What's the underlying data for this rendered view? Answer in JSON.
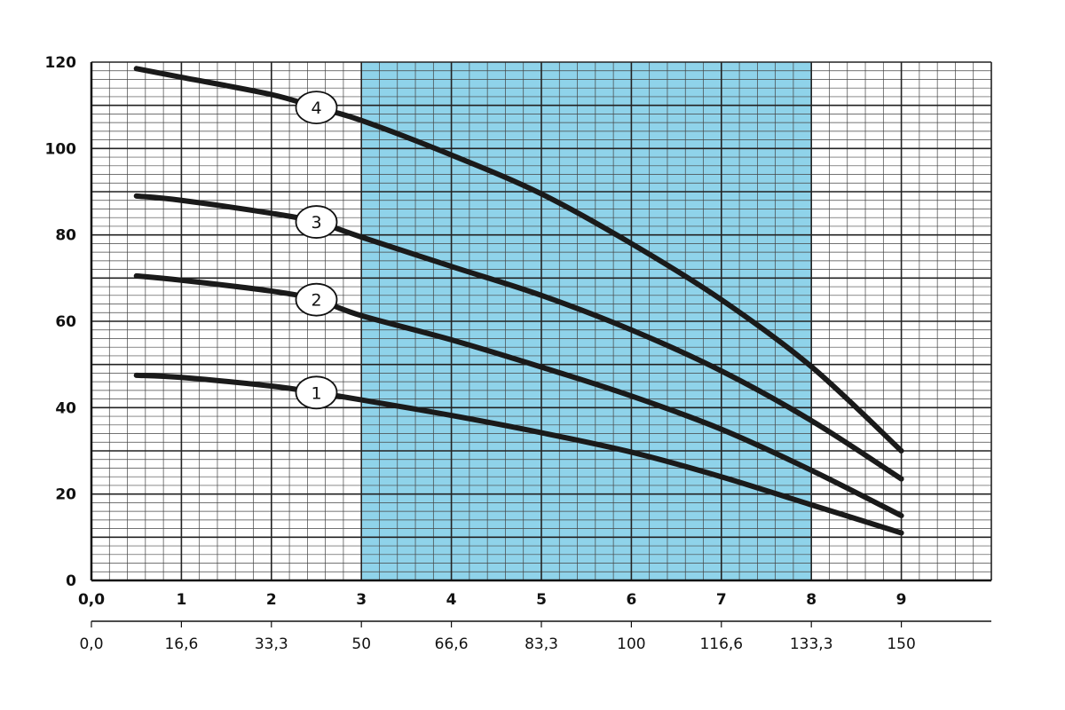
{
  "chart_data": {
    "type": "line",
    "x_ticks": [
      "0,0",
      "1",
      "2",
      "3",
      "4",
      "5",
      "6",
      "7",
      "8",
      "9"
    ],
    "x2_ticks": [
      "0,0",
      "16,6",
      "33,3",
      "50",
      "66,6",
      "83,3",
      "100",
      "116,6",
      "133,3",
      "150"
    ],
    "y_ticks": [
      "0",
      "20",
      "40",
      "60",
      "80",
      "100",
      "120"
    ],
    "xlim": [
      0,
      10
    ],
    "ylim": [
      0,
      120
    ],
    "grid": true,
    "shaded_range": {
      "x": [
        3,
        8
      ],
      "color": "#8fd3ea"
    },
    "series": [
      {
        "name": "1",
        "x": [
          0.5,
          1,
          2,
          2.5,
          3,
          4,
          5,
          6,
          7,
          8,
          9
        ],
        "y": [
          47.5,
          47,
          45,
          43.5,
          41.8,
          38.2,
          34.2,
          29.7,
          24,
          17.5,
          11
        ]
      },
      {
        "name": "2",
        "x": [
          0.5,
          1,
          2,
          2.5,
          3,
          4,
          5,
          6,
          7,
          8,
          9
        ],
        "y": [
          70.5,
          69.5,
          67,
          65,
          61.3,
          55.7,
          49.4,
          42.7,
          35,
          25.5,
          15
        ]
      },
      {
        "name": "3",
        "x": [
          0.5,
          1,
          2,
          2.5,
          3,
          4,
          5,
          6,
          7,
          8,
          9
        ],
        "y": [
          89,
          88,
          85,
          83,
          79.5,
          72.7,
          66,
          58,
          48.5,
          37,
          23.5
        ]
      },
      {
        "name": "4",
        "x": [
          0.5,
          1,
          2,
          2.5,
          3,
          4,
          5,
          6,
          7,
          8,
          9
        ],
        "y": [
          118.5,
          116.5,
          112.5,
          109.5,
          106.5,
          98.5,
          89.5,
          78,
          65,
          49.5,
          30
        ]
      }
    ],
    "series_color": "#1a1a1a",
    "label_positions_x": [
      2.5,
      2.5,
      2.5,
      2.5
    ]
  }
}
